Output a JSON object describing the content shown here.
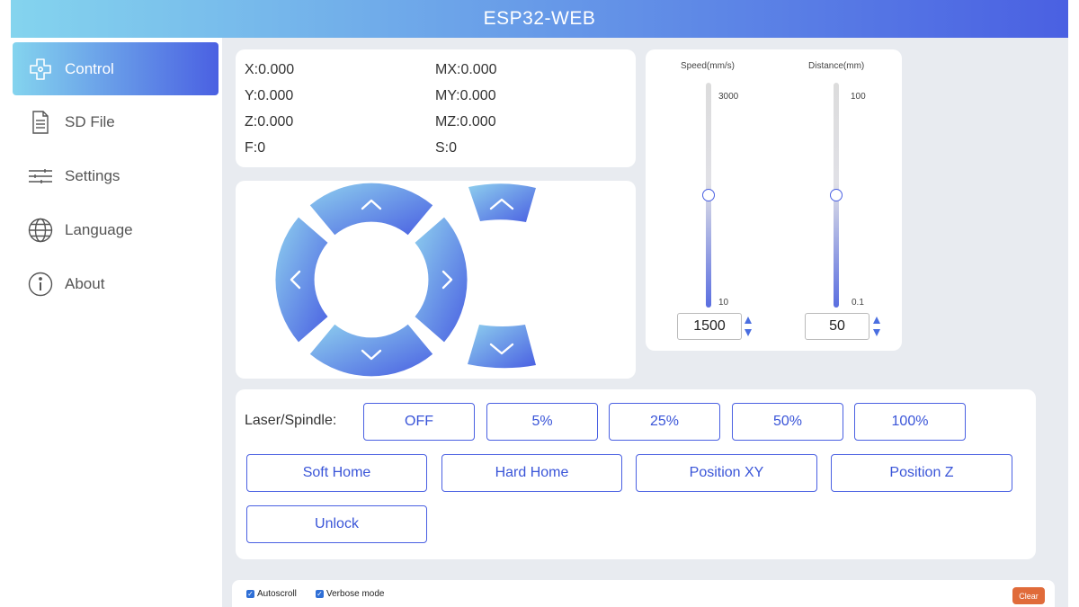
{
  "header": {
    "title": "ESP32-WEB"
  },
  "sidebar": {
    "items": [
      {
        "label": "Control",
        "icon": "gamepad-icon",
        "active": true
      },
      {
        "label": "SD File",
        "icon": "file-icon"
      },
      {
        "label": "Settings",
        "icon": "sliders-icon"
      },
      {
        "label": "Language",
        "icon": "globe-icon"
      },
      {
        "label": "About",
        "icon": "info-icon"
      }
    ]
  },
  "coords": {
    "x": "X:0.000",
    "y": "Y:0.000",
    "z": "Z:0.000",
    "f": "F:0",
    "mx": "MX:0.000",
    "my": "MY:0.000",
    "mz": "MZ:0.000",
    "s": "S:0"
  },
  "jog": {
    "buttons": [
      "y-plus",
      "y-minus",
      "x-minus",
      "x-plus",
      "z-plus",
      "z-minus"
    ],
    "icons": [
      "chevron-up-icon",
      "chevron-down-icon",
      "chevron-left-icon",
      "chevron-right-icon"
    ]
  },
  "sliders": {
    "speed": {
      "title": "Speed(mm/s)",
      "max": "3000",
      "min": "10",
      "value": "1500",
      "level": 0.5
    },
    "distance": {
      "title": "Distance(mm)",
      "max": "100",
      "min": "0.1",
      "value": "50",
      "level": 0.5
    }
  },
  "laser": {
    "label": "Laser/Spindle:",
    "power_buttons": [
      "OFF",
      "5%",
      "25%",
      "50%",
      "100%"
    ],
    "home_buttons": [
      "Soft Home",
      "Hard Home",
      "Position XY",
      "Position Z"
    ],
    "unlock": "Unlock"
  },
  "console": {
    "autoscroll": "Autoscroll",
    "verbose": "Verbose mode",
    "clear": "Clear"
  },
  "colors": {
    "accent": "#4a60e2",
    "gradient_start": "#84d4ee",
    "gradient_end": "#4a60e2",
    "clear_button": "#e06b3a",
    "panel_bg": "#e8ebf0"
  }
}
